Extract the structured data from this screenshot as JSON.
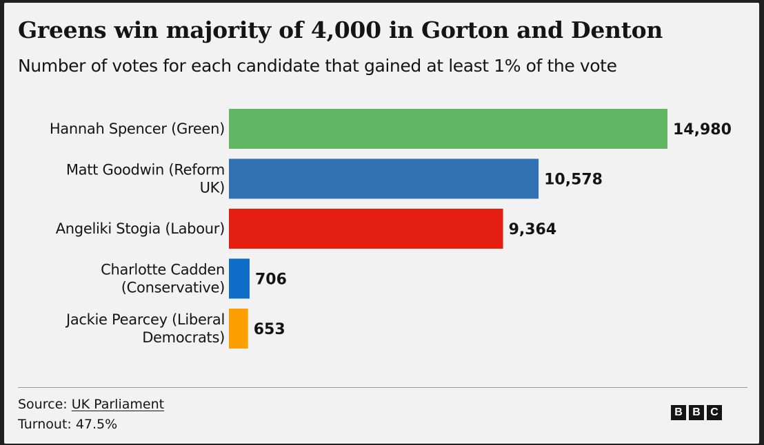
{
  "chart_data": {
    "type": "bar",
    "orientation": "horizontal",
    "title": "Greens win majority of 4,000 in Gorton and Denton",
    "subtitle": "Number of votes for each candidate that gained at least 1% of the vote",
    "categories": [
      [
        "Hannah Spencer (Green)"
      ],
      [
        "Matt Goodwin (Reform",
        "UK)"
      ],
      [
        "Angeliki Stogia (Labour)"
      ],
      [
        "Charlotte Cadden",
        "(Conservative)"
      ],
      [
        "Jackie Pearcey (Liberal",
        "Democrats)"
      ]
    ],
    "values": [
      14980,
      10578,
      9364,
      706,
      653
    ],
    "value_labels": [
      "14,980",
      "10,578",
      "9,364",
      "706",
      "653"
    ],
    "colors": [
      "#63b663",
      "#3072b4",
      "#e41f12",
      "#0f6ec8",
      "#fd9e01"
    ],
    "xlim": [
      0,
      14980
    ],
    "grid": false,
    "legend": "none"
  },
  "footer": {
    "source_prefix": "Source: ",
    "source_link": "UK Parliament",
    "turnout": "Turnout: 47.5%"
  },
  "logo": {
    "letters": [
      "B",
      "B",
      "C"
    ]
  }
}
